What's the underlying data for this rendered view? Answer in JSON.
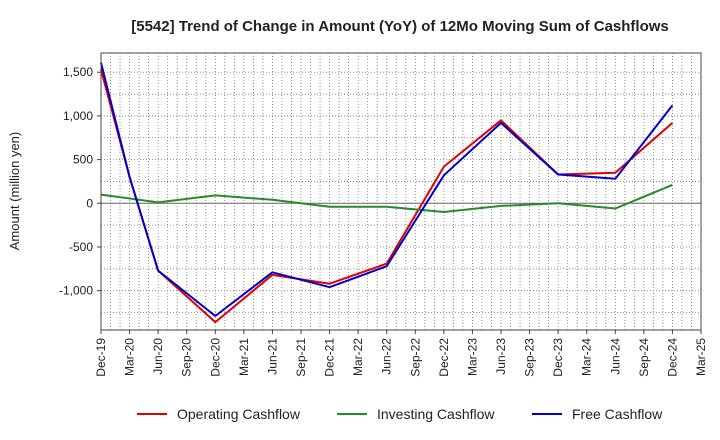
{
  "chart_data": {
    "type": "line",
    "title": "[5542]  Trend of Change in Amount (YoY) of 12Mo Moving Sum of Cashflows",
    "ylabel": "Amount (million yen)",
    "xlabel": "",
    "ylim": [
      -1450,
      1720
    ],
    "yticks": [
      1500,
      1000,
      500,
      0,
      -500,
      -1000
    ],
    "ytick_labels": [
      "1,500",
      "1,000",
      "500",
      "0",
      "-500",
      "-1,000"
    ],
    "x_tick_labels": [
      "Dec-19",
      "Mar-20",
      "Jun-20",
      "Sep-20",
      "Dec-20",
      "Mar-21",
      "Jun-21",
      "Sep-21",
      "Dec-21",
      "Mar-22",
      "Jun-22",
      "Sep-22",
      "Dec-22",
      "Mar-23",
      "Jun-23",
      "Sep-23",
      "Dec-23",
      "Mar-24",
      "Jun-24",
      "Sep-24",
      "Dec-24",
      "Mar-25"
    ],
    "legend_position": "bottom",
    "series": [
      {
        "name": "Operating Cashflow",
        "color": "#e00000",
        "points": [
          [
            0,
            1530
          ],
          [
            1,
            300
          ],
          [
            2,
            -770
          ],
          [
            4,
            -1360
          ],
          [
            6,
            -820
          ],
          [
            8,
            -920
          ],
          [
            10,
            -690
          ],
          [
            12,
            420
          ],
          [
            14,
            950
          ],
          [
            16,
            330
          ],
          [
            18,
            350
          ],
          [
            20,
            920
          ]
        ]
      },
      {
        "name": "Investing Cashflow",
        "color": "#2a8a2a",
        "points": [
          [
            0,
            100
          ],
          [
            2,
            10
          ],
          [
            4,
            90
          ],
          [
            6,
            40
          ],
          [
            8,
            -40
          ],
          [
            10,
            -40
          ],
          [
            12,
            -100
          ],
          [
            14,
            -30
          ],
          [
            16,
            0
          ],
          [
            18,
            -60
          ],
          [
            20,
            210
          ]
        ]
      },
      {
        "name": "Free Cashflow",
        "color": "#0000cc",
        "points": [
          [
            0,
            1610
          ],
          [
            1,
            300
          ],
          [
            2,
            -770
          ],
          [
            4,
            -1290
          ],
          [
            6,
            -790
          ],
          [
            8,
            -960
          ],
          [
            10,
            -720
          ],
          [
            12,
            320
          ],
          [
            14,
            920
          ],
          [
            16,
            330
          ],
          [
            18,
            280
          ],
          [
            20,
            1120
          ]
        ]
      }
    ]
  }
}
